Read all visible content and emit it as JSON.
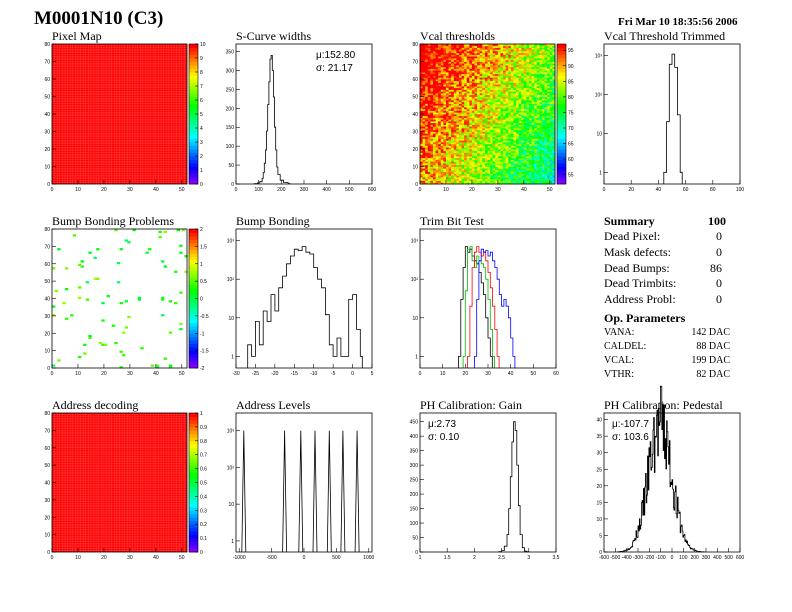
{
  "header": {
    "title": "M0001N10 (C3)",
    "date": "Fri Mar 10 18:35:56 2006"
  },
  "chart_data": [
    {
      "id": "pixel-map",
      "type": "heatmap",
      "title": "Pixel Map",
      "x_ticks": [
        "0",
        "10",
        "20",
        "30",
        "40",
        "50"
      ],
      "xlim": [
        0,
        52
      ],
      "y_ticks": [
        "0",
        "10",
        "20",
        "30",
        "40",
        "50",
        "60",
        "70",
        "80"
      ],
      "ylim": [
        0,
        80
      ],
      "z_ticks": [
        "0",
        "1",
        "2",
        "3",
        "4",
        "5",
        "6",
        "7",
        "8",
        "9",
        "10"
      ],
      "zlim": [
        0,
        10
      ],
      "uniform_value": 10,
      "uniform_color": "#ff0000"
    },
    {
      "id": "scurve-widths",
      "type": "histogram",
      "title": "S-Curve widths",
      "x_ticks": [
        "0",
        "100",
        "200",
        "300",
        "400",
        "500",
        "600"
      ],
      "xlim": [
        0,
        600
      ],
      "y_ticks": [
        "0",
        "50",
        "100",
        "150",
        "200",
        "250",
        "300",
        "350"
      ],
      "ylim": [
        0,
        370
      ],
      "stats": {
        "mean": "μ:152.80",
        "sigma": "σ: 21.17"
      },
      "points": [
        [
          80,
          1
        ],
        [
          95,
          3
        ],
        [
          105,
          6
        ],
        [
          115,
          15
        ],
        [
          120,
          30
        ],
        [
          125,
          55
        ],
        [
          130,
          90
        ],
        [
          135,
          140
        ],
        [
          140,
          210
        ],
        [
          145,
          270
        ],
        [
          150,
          330
        ],
        [
          155,
          340
        ],
        [
          160,
          300
        ],
        [
          165,
          230
        ],
        [
          170,
          150
        ],
        [
          175,
          90
        ],
        [
          180,
          45
        ],
        [
          185,
          25
        ],
        [
          195,
          10
        ],
        [
          210,
          4
        ],
        [
          230,
          1
        ]
      ]
    },
    {
      "id": "vcal-thresholds",
      "type": "heatmap",
      "title": "Vcal thresholds",
      "x_ticks": [
        "0",
        "10",
        "20",
        "30",
        "40",
        "50"
      ],
      "xlim": [
        0,
        52
      ],
      "y_ticks": [
        "0",
        "10",
        "20",
        "30",
        "40",
        "50",
        "60",
        "70",
        "80"
      ],
      "ylim": [
        0,
        80
      ],
      "z_ticks": [
        "55",
        "60",
        "65",
        "70",
        "75",
        "80",
        "85",
        "90",
        "95"
      ],
      "zlim": [
        52,
        97
      ]
    },
    {
      "id": "vcal-trimmed",
      "type": "histogram",
      "title": "Vcal Threshold Trimmed",
      "log_y": true,
      "x_ticks": [
        "0",
        "20",
        "40",
        "60",
        "80",
        "100"
      ],
      "xlim": [
        0,
        100
      ],
      "y_ticks": [
        "1",
        "10",
        "10²",
        "10³"
      ],
      "ylim": [
        0.5,
        2000
      ],
      "points": [
        [
          44,
          1
        ],
        [
          46,
          20
        ],
        [
          48,
          600
        ],
        [
          50,
          1100
        ],
        [
          52,
          500
        ],
        [
          54,
          30
        ],
        [
          56,
          1
        ]
      ]
    },
    {
      "id": "bump-bonding-problems",
      "type": "heatmap",
      "title": "Bump Bonding Problems",
      "x_ticks": [
        "0",
        "10",
        "20",
        "30",
        "40",
        "50"
      ],
      "xlim": [
        0,
        52
      ],
      "y_ticks": [
        "0",
        "10",
        "20",
        "30",
        "40",
        "50",
        "60",
        "70",
        "80"
      ],
      "ylim": [
        0,
        80
      ],
      "z_ticks": [
        "-2",
        "-1.5",
        "-1",
        "-0.5",
        "0",
        "0.5",
        "1",
        "1.5",
        "2"
      ],
      "zlim": [
        -2,
        2
      ]
    },
    {
      "id": "bump-bonding",
      "type": "histogram",
      "title": "Bump Bonding",
      "log_y": true,
      "x_ticks": [
        "-30",
        "-25",
        "-20",
        "-15",
        "-10",
        "-5",
        "0",
        "5"
      ],
      "xlim": [
        -30,
        5
      ],
      "y_ticks": [
        "1",
        "10",
        "10²",
        "10³"
      ],
      "ylim": [
        0.5,
        2000
      ],
      "points": [
        [
          -27,
          2
        ],
        [
          -26,
          1
        ],
        [
          -25,
          8
        ],
        [
          -24,
          2
        ],
        [
          -23,
          15
        ],
        [
          -22,
          8
        ],
        [
          -21,
          40
        ],
        [
          -20,
          15
        ],
        [
          -19,
          60
        ],
        [
          -18,
          120
        ],
        [
          -17,
          250
        ],
        [
          -16,
          400
        ],
        [
          -15,
          600
        ],
        [
          -14,
          550
        ],
        [
          -13,
          700
        ],
        [
          -12,
          500
        ],
        [
          -11,
          450
        ],
        [
          -10,
          200
        ],
        [
          -9,
          100
        ],
        [
          -8,
          60
        ],
        [
          -7,
          12
        ],
        [
          -6,
          2
        ],
        [
          -5,
          1
        ],
        [
          -4,
          3
        ],
        [
          -3,
          1
        ],
        [
          -2,
          1
        ],
        [
          -1,
          30
        ],
        [
          0,
          40
        ],
        [
          1,
          5
        ],
        [
          2,
          1
        ]
      ]
    },
    {
      "id": "trim-bit-test",
      "type": "line",
      "title": "Trim Bit Test",
      "log_y": true,
      "x_ticks": [
        "0",
        "10",
        "20",
        "30",
        "40",
        "50",
        "60"
      ],
      "xlim": [
        0,
        60
      ],
      "y_ticks": [
        "1",
        "10",
        "10²",
        "10³"
      ],
      "ylim": [
        0.5,
        2000
      ],
      "series": [
        {
          "color": "#000000",
          "points": [
            [
              17,
              1
            ],
            [
              18,
              30
            ],
            [
              19,
              200
            ],
            [
              20,
              700
            ],
            [
              21,
              500
            ],
            [
              22,
              600
            ],
            [
              23,
              400
            ],
            [
              24,
              300
            ],
            [
              25,
              250
            ],
            [
              26,
              150
            ],
            [
              27,
              80
            ],
            [
              28,
              40
            ],
            [
              29,
              10
            ],
            [
              30,
              3
            ],
            [
              31,
              1
            ]
          ]
        },
        {
          "color": "#00bb00",
          "points": [
            [
              19,
              1
            ],
            [
              20,
              50
            ],
            [
              21,
              600
            ],
            [
              22,
              700
            ],
            [
              23,
              300
            ],
            [
              24,
              200
            ],
            [
              25,
              400
            ],
            [
              26,
              300
            ],
            [
              27,
              250
            ],
            [
              28,
              200
            ],
            [
              29,
              100
            ],
            [
              30,
              30
            ],
            [
              31,
              5
            ],
            [
              32,
              1
            ]
          ]
        },
        {
          "color": "#ff0000",
          "points": [
            [
              21,
              1
            ],
            [
              22,
              20
            ],
            [
              23,
              200
            ],
            [
              24,
              500
            ],
            [
              25,
              700
            ],
            [
              26,
              500
            ],
            [
              27,
              400
            ],
            [
              28,
              500
            ],
            [
              29,
              300
            ],
            [
              30,
              150
            ],
            [
              31,
              60
            ],
            [
              32,
              20
            ],
            [
              33,
              5
            ],
            [
              34,
              1
            ]
          ]
        },
        {
          "color": "#0000ff",
          "points": [
            [
              24,
              1
            ],
            [
              25,
              30
            ],
            [
              26,
              300
            ],
            [
              27,
              600
            ],
            [
              28,
              500
            ],
            [
              29,
              550
            ],
            [
              30,
              400
            ],
            [
              31,
              500
            ],
            [
              32,
              300
            ],
            [
              33,
              200
            ],
            [
              34,
              100
            ],
            [
              35,
              40
            ],
            [
              36,
              20
            ],
            [
              37,
              30
            ],
            [
              38,
              20
            ],
            [
              39,
              10
            ],
            [
              40,
              3
            ],
            [
              41,
              1
            ]
          ]
        }
      ]
    },
    {
      "id": "address-decoding",
      "type": "heatmap",
      "title": "Address decoding",
      "x_ticks": [
        "0",
        "10",
        "20",
        "30",
        "40",
        "50"
      ],
      "xlim": [
        0,
        52
      ],
      "y_ticks": [
        "0",
        "10",
        "20",
        "30",
        "40",
        "50",
        "60",
        "70",
        "80"
      ],
      "ylim": [
        0,
        80
      ],
      "z_ticks": [
        "0",
        "0.1",
        "0.2",
        "0.3",
        "0.4",
        "0.5",
        "0.6",
        "0.7",
        "0.8",
        "0.9",
        "1"
      ],
      "zlim": [
        0,
        1
      ],
      "uniform_value": 1,
      "uniform_color": "#ff0000"
    },
    {
      "id": "address-levels",
      "type": "histogram",
      "title": "Address Levels",
      "log_y": true,
      "x_ticks": [
        "-1000",
        "-500",
        "0",
        "500",
        "1000"
      ],
      "xlim": [
        -1050,
        1050
      ],
      "y_ticks": [
        "1",
        "10",
        "10²",
        "10³"
      ],
      "ylim": [
        0.5,
        3000
      ],
      "peaks": [
        -930,
        -300,
        -50,
        170,
        390,
        600,
        820
      ]
    },
    {
      "id": "ph-gain",
      "type": "histogram",
      "title": "PH Calibration: Gain",
      "x_ticks": [
        "1",
        "1.5",
        "2",
        "2.5",
        "3",
        "3.5"
      ],
      "xlim": [
        1,
        3.5
      ],
      "y_ticks": [
        "0",
        "50",
        "100",
        "150",
        "200",
        "250",
        "300",
        "350",
        "400",
        "450"
      ],
      "ylim": [
        0,
        480
      ],
      "stats": {
        "mean": "μ:2.73",
        "sigma": "σ: 0.10"
      },
      "points": [
        [
          2.45,
          1
        ],
        [
          2.5,
          5
        ],
        [
          2.55,
          20
        ],
        [
          2.6,
          60
        ],
        [
          2.63,
          150
        ],
        [
          2.66,
          260
        ],
        [
          2.69,
          380
        ],
        [
          2.72,
          450
        ],
        [
          2.75,
          420
        ],
        [
          2.78,
          300
        ],
        [
          2.81,
          160
        ],
        [
          2.84,
          60
        ],
        [
          2.88,
          15
        ],
        [
          2.92,
          3
        ],
        [
          2.96,
          1
        ]
      ]
    },
    {
      "id": "ph-pedestal",
      "type": "histogram",
      "title": "PH Calibration: Pedestal",
      "x_ticks": [
        "-600",
        "-500",
        "-400",
        "-300",
        "-200",
        "-100",
        "0",
        "100",
        "200",
        "300",
        "400",
        "500",
        "600"
      ],
      "xlim": [
        -600,
        600
      ],
      "y_ticks": [
        "0",
        "5",
        "10",
        "15",
        "20",
        "25",
        "30",
        "35",
        "40"
      ],
      "ylim": [
        0,
        42
      ],
      "stats": {
        "mean": "μ:-107.7",
        "sigma": "σ: 103.6"
      }
    }
  ],
  "summary": {
    "title": "Summary",
    "total": "100",
    "rows": [
      {
        "label": "Dead Pixel:",
        "value": "0"
      },
      {
        "label": "Mask defects:",
        "value": "0"
      },
      {
        "label": "Dead Bumps:",
        "value": "86"
      },
      {
        "label": "Dead Trimbits:",
        "value": "0"
      },
      {
        "label": "Address Probl:",
        "value": "0"
      }
    ],
    "op_title": "Op. Parameters",
    "op_rows": [
      {
        "label": "VANA:",
        "value": "142 DAC"
      },
      {
        "label": "CALDEL:",
        "value": "88 DAC"
      },
      {
        "label": "VCAL:",
        "value": "199 DAC"
      },
      {
        "label": "VTHR:",
        "value": "82 DAC"
      }
    ]
  }
}
